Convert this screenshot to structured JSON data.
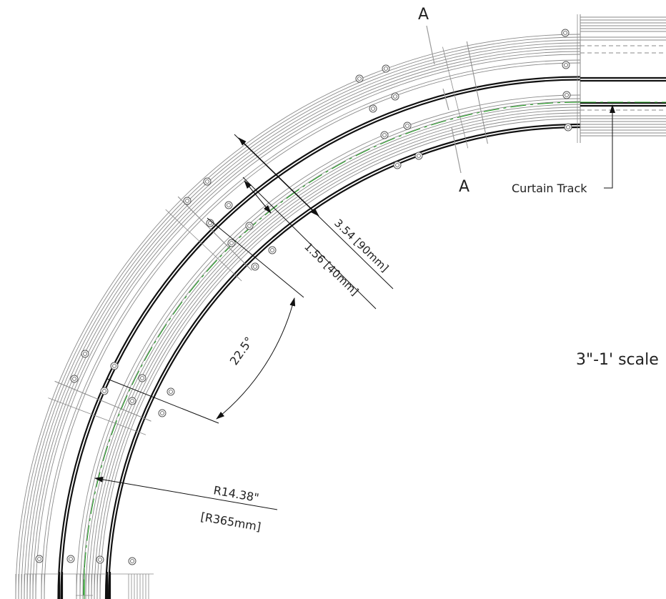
{
  "labels": {
    "section_mark_top": "A",
    "section_mark_bottom": "A",
    "curtain_track": "Curtain Track",
    "scale_note": "3\"-1' scale",
    "dim_width_outer": "3.54 [90mm]",
    "dim_width_inner": "1.56 [40mm]",
    "dim_angle": "22.5°",
    "dim_radius_imperial": "R14.38\"",
    "dim_radius_metric": "[R365mm]"
  },
  "colors": {
    "line": "#8a8a8a",
    "heavy": "#111111",
    "centerline": "#1a9e1a",
    "text": "#222222"
  },
  "geometry_note_icons": [
    "bolt-hole-icon",
    "arrowhead-icon"
  ]
}
